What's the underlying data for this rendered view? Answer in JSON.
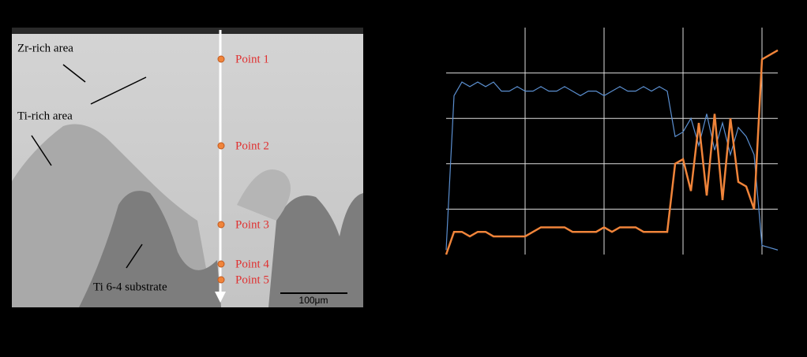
{
  "image": {
    "labels": [
      "Zr-rich area",
      "Ti-rich area",
      "Ti 6-4 substrate"
    ],
    "points": [
      "Point 1",
      "Point 2",
      "Point 3",
      "Point 4",
      "Point 5"
    ],
    "scale_bar": "100μm"
  },
  "chart_data": {
    "type": "line",
    "x": [
      0,
      0.1,
      0.2,
      0.3,
      0.4,
      0.5,
      0.6,
      0.7,
      0.8,
      0.9,
      1.0,
      1.1,
      1.2,
      1.3,
      1.4,
      1.5,
      1.6,
      1.7,
      1.8,
      1.9,
      2.0,
      2.1,
      2.2,
      2.3,
      2.4,
      2.5,
      2.6,
      2.7,
      2.8,
      2.9,
      3.0,
      3.1,
      3.2,
      3.3,
      3.4,
      3.5,
      3.6,
      3.7,
      3.8,
      3.9,
      4.0,
      4.1,
      4.2
    ],
    "series": [
      {
        "color": "#5b8fd0",
        "values": [
          0.1,
          3.5,
          3.8,
          3.7,
          3.8,
          3.7,
          3.8,
          3.6,
          3.6,
          3.7,
          3.6,
          3.6,
          3.7,
          3.6,
          3.6,
          3.7,
          3.6,
          3.5,
          3.6,
          3.6,
          3.5,
          3.6,
          3.7,
          3.6,
          3.6,
          3.7,
          3.6,
          3.7,
          3.6,
          2.6,
          2.7,
          3.0,
          2.4,
          3.1,
          2.3,
          2.9,
          2.2,
          2.8,
          2.6,
          2.2,
          0.2,
          0.15,
          0.1
        ]
      },
      {
        "color": "#f0843a",
        "values": [
          0.0,
          0.5,
          0.5,
          0.4,
          0.5,
          0.5,
          0.4,
          0.4,
          0.4,
          0.4,
          0.4,
          0.5,
          0.6,
          0.6,
          0.6,
          0.6,
          0.5,
          0.5,
          0.5,
          0.5,
          0.6,
          0.5,
          0.6,
          0.6,
          0.6,
          0.5,
          0.5,
          0.5,
          0.5,
          2.0,
          2.1,
          1.4,
          2.9,
          1.3,
          3.1,
          1.2,
          3.0,
          1.6,
          1.5,
          1.0,
          4.3,
          4.4,
          4.5
        ]
      }
    ],
    "xlim": [
      0,
      4.2
    ],
    "ylim": [
      0,
      5
    ],
    "xticks": [
      1,
      2,
      3,
      4
    ],
    "yticks": [
      1,
      2,
      3,
      4
    ],
    "grid": true
  }
}
